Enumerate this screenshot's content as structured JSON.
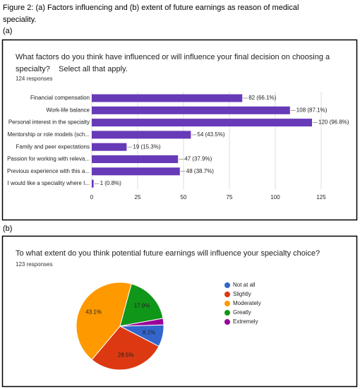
{
  "caption": "Figure 2: (a) Factors influencing and (b) extent of future earnings as reason of medical speciality.",
  "chart_data": [
    {
      "type": "bar",
      "panel": "(a)",
      "title": "What factors do you think have influenced or will influence your final decision on choosing a specialty?    Select all that apply.",
      "subtitle": "124 responses",
      "categories": [
        "Financial compensation",
        "Work-life balance",
        "Personal interest in the specialty",
        "Mentorship or role models (sch...",
        "Family and peer expectations",
        "Passion for working with releva...",
        "Previous experience with this a...",
        "I would like a speciality where I..."
      ],
      "values": [
        82,
        108,
        120,
        54,
        19,
        47,
        48,
        1
      ],
      "value_labels": [
        "82 (66.1%)",
        "108 (87.1%)",
        "120 (96.8%)",
        "54 (43.5%)",
        "19 (15.3%)",
        "47 (37.9%)",
        "48 (38.7%)",
        "1 (0.8%)"
      ],
      "color": "#673ab7",
      "orientation": "horizontal",
      "xlim": [
        0,
        130
      ],
      "xticks": [
        0,
        25,
        50,
        75,
        100,
        125
      ],
      "grid": true
    },
    {
      "type": "pie",
      "panel": "(b)",
      "title": "To what extent do you think potential future earnings will influence your specialty choice?",
      "subtitle": "123 responses",
      "categories": [
        "Not at all",
        "Slightly",
        "Moderately",
        "Greatly",
        "Extremely"
      ],
      "values": [
        8.1,
        28.5,
        43.1,
        17.9,
        2.4
      ],
      "value_labels": [
        "8.1%",
        "28.5%",
        "43.1%",
        "17.9%",
        null
      ],
      "colors": [
        "#3366cc",
        "#dc3912",
        "#ff9900",
        "#109618",
        "#990099"
      ],
      "legend": "right"
    }
  ]
}
